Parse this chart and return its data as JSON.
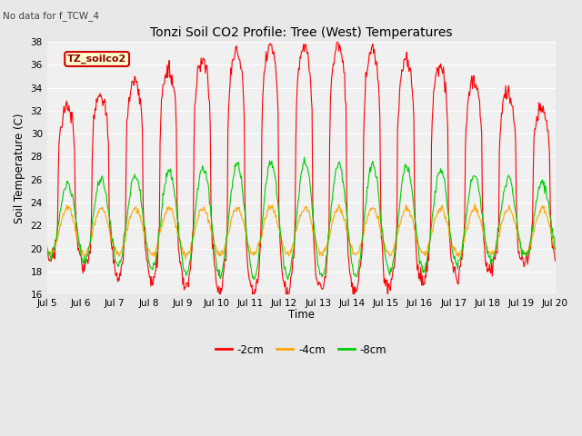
{
  "title": "Tonzi Soil CO2 Profile: Tree (West) Temperatures",
  "subtitle": "No data for f_TCW_4",
  "ylabel": "Soil Temperature (C)",
  "xlabel": "Time",
  "legend_label": "TZ_soilco2",
  "ylim": [
    16,
    38
  ],
  "series_labels": [
    "-2cm",
    "-4cm",
    "-8cm"
  ],
  "series_colors": [
    "#ff0000",
    "#ffa500",
    "#00cc00"
  ],
  "xtick_labels": [
    "Jul 5",
    "Jul 6",
    "Jul 7",
    "Jul 8",
    "Jul 9",
    "Jul 10",
    "Jul 11",
    "Jul 12",
    "Jul 13",
    "Jul 14",
    "Jul 15",
    "Jul 16",
    "Jul 17",
    "Jul 18",
    "Jul 19",
    "Jul 20"
  ],
  "bg_color": "#e8e8e8",
  "plot_bg_color": "#f0f0f0",
  "grid_color": "#ffffff",
  "n_days": 15,
  "n_per_day": 48
}
